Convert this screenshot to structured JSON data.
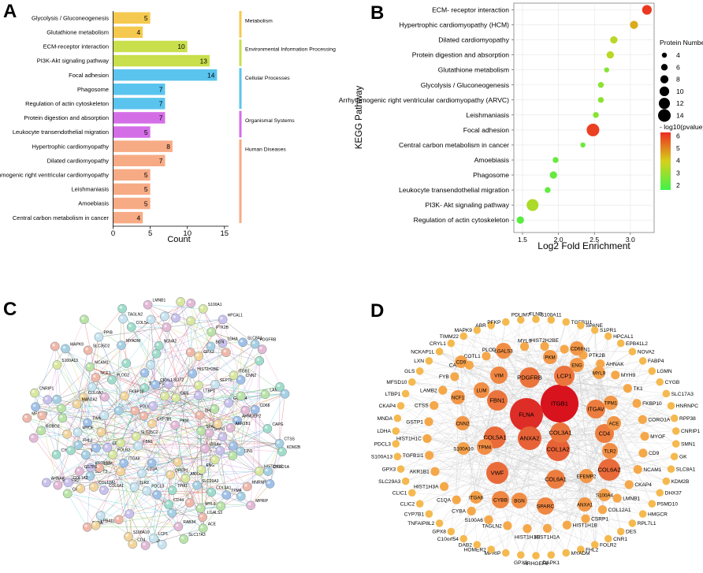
{
  "panels": {
    "a": "A",
    "b": "B",
    "c": "C",
    "d": "D"
  },
  "chart_data": [
    {
      "type": "bar",
      "orientation": "horizontal",
      "title": "",
      "xlabel": "Count",
      "ylabel": "",
      "xlim": [
        0,
        17
      ],
      "xticks": [
        "0",
        "5",
        "10",
        "15"
      ],
      "categories": [
        "Glycolysis / Gluconeogenesis",
        "Glutathione metabolism",
        "ECM-receptor interaction",
        "PI3K-Akt signaling pathway",
        "Focal adhesion",
        "Phagosome",
        "Regulation of actin cytoskeleton",
        "Protein digestion and absorption",
        "Leukocyte transendothelial migration",
        "Hypertrophic cardiomyopathy",
        "Dilated cardiomyopathy",
        "Arrhythmogenic right ventricular cardiomyopathy",
        "Leishmaniasis",
        "Amoebiasis",
        "Central carbon metabolism in cancer"
      ],
      "category_labels": [
        "Glycolysis / Gluconeogenesis",
        "Glutathione metabolism",
        "ECM-receptor interaction",
        "PI3K-Akt signaling pathway",
        "Focal adhesion",
        "Phagosome",
        "Regulation of actin cytoskeleton",
        "Protein digestion and absorption",
        "Leukocyte transendothelial migration",
        "Hypertrophic cardiomyopathy",
        "Dilated cardiomyopathy",
        "rrhythmogenic right ventricular cardiomyopathy",
        "Leishmaniasis",
        "Amoebiasis",
        "Central carbon metabolism in cancer"
      ],
      "values": [
        5,
        4,
        10,
        13,
        14,
        7,
        7,
        7,
        5,
        8,
        7,
        5,
        5,
        5,
        4
      ],
      "groups": [
        {
          "name": "Metabolism",
          "color": "#f5c94f",
          "count": 2
        },
        {
          "name": "Environmental Information Processing",
          "color": "#c9df4c",
          "count": 2
        },
        {
          "name": "Cellular Processes",
          "color": "#5ac4ee",
          "count": 3
        },
        {
          "name": "Organismal Systems",
          "color": "#d46ee6",
          "count": 2
        },
        {
          "name": "Human Diseases",
          "color": "#f7ab85",
          "count": 6
        }
      ]
    },
    {
      "type": "scatter",
      "title": "",
      "xlabel": "Log2 Fold Enrichment",
      "ylabel": "KEGG Pathway",
      "xlim": [
        1.38,
        3.33
      ],
      "xticks": [
        1.5,
        2.0,
        2.5,
        3.0
      ],
      "xtick_labels": [
        "1.5",
        "2.0",
        "2.5",
        "3.0"
      ],
      "categories": [
        "ECM- receptor interaction",
        "Hypertrophic cardiomyopathy (HCM)",
        "Dilated cardiomyopathy",
        "Protein digestion and absorption",
        "Glutathione metabolism",
        "Glycolysis / Gluconeogenesis",
        "Arrhythmogenic right ventricular cardiomyopathy (ARVC)",
        "Leishmaniasis",
        "Focal adhesion",
        "Central carbon metabolism in cancer",
        "Amoebiasis",
        "Phagosome",
        "Leukocyte transendothelial migration",
        "PI3K- Akt signaling pathway",
        "Regulation of actin cytoskeleton"
      ],
      "x": [
        3.23,
        3.05,
        2.77,
        2.72,
        2.67,
        2.59,
        2.59,
        2.52,
        2.48,
        2.34,
        1.96,
        1.93,
        1.85,
        1.64,
        1.47
      ],
      "protein_number": [
        10,
        8,
        7,
        7,
        4,
        5,
        5,
        5,
        14,
        4,
        5,
        7,
        5,
        13,
        7
      ],
      "neg_log10_pvalue": [
        6.1,
        4.5,
        3.5,
        3.5,
        2.7,
        2.8,
        2.8,
        2.7,
        6.0,
        2.3,
        2.2,
        2.2,
        2.1,
        3.3,
        2.0
      ],
      "legend_size": {
        "title": "Protein Number",
        "labels": [
          "4",
          "6",
          "8",
          "10",
          "12",
          "14"
        ],
        "values": [
          4,
          6,
          8,
          10,
          12,
          14
        ]
      },
      "legend_color": {
        "title": "- log10(pvalue)",
        "labels": [
          "6",
          "5",
          "4",
          "3",
          "2"
        ],
        "values": [
          6,
          5,
          4,
          3,
          2
        ],
        "range": [
          1.6,
          6.3
        ],
        "low_color": "#3ff34a",
        "mid_color": "#d6d11b",
        "high_color": "#ed2b22"
      }
    }
  ],
  "network_c": {
    "labels": [
      "PDGFRB",
      "EMILIN1",
      "LTBP1",
      "COL12A1",
      "PLOD2",
      "MPRIP",
      "FOLR2",
      "TIMM22",
      "HNRNPC",
      "TLR2",
      "CTSS",
      "ACE",
      "CD9",
      "COL6A2",
      "COL5A1",
      "ITGAV",
      "SLC35C2",
      "ARMDEP2",
      "SLC35D2",
      "SEPT8",
      "SEPT3",
      "OPP7",
      "KRT8D2",
      "DPEP1",
      "STXBP1",
      "RAB34",
      "S100A1",
      "SLC8A1",
      "MFSD10",
      "PDCL3",
      "SLC29A3",
      "SLC17A3",
      "GOLM4",
      "MAN2A2",
      "KDM2B",
      "HOMER2",
      "HIST1H1C",
      "HIST2H2BE",
      "DHX37",
      "PPIB",
      "MAPK9",
      "ROBO2",
      "SLIT2",
      "CYP7B1",
      "CD44",
      "AKR1B1",
      "ANXA1",
      "CRYL1",
      "PDLIM7",
      "FBN1",
      "VIM",
      "LAMB2",
      "COL1A2",
      "S100A10",
      "TPM1",
      "PKM",
      "ENG",
      "CD68",
      "LUM",
      "MYOF",
      "CORO1A",
      "NCAM1",
      "LDHA",
      "GPX3",
      "CYBB",
      "LMNB1",
      "S100A13",
      "CNN2",
      "NCF1",
      "TAGLN2",
      "FHL2",
      "PTK2B",
      "AHNAK",
      "FKBP10",
      "COL3A1",
      "FLNA",
      "ITGB1",
      "TPM4",
      "LGALS3",
      "LCP1",
      "BGN",
      "SPARC",
      "COL6A1",
      "CD4",
      "CAPG",
      "GSTP1",
      "DES",
      "ITGA8",
      "CYBA",
      "C1QA",
      "MYADM",
      "MYL9",
      "HPCAL1",
      "EPB41L2",
      "NOVA2",
      "SMN1",
      "CNRIP1"
    ]
  },
  "network_d": {
    "hubs": [
      "ITGB1",
      "FLNA",
      "ANXA2",
      "COL1A2",
      "COL3A1",
      "FBN1",
      "PDGFRB",
      "LCP1",
      "COL5A1",
      "CD4",
      "COL6A2",
      "VWF",
      "COL6A1",
      "ITGAV",
      "TPM4",
      "SPARC",
      "VIM",
      "CYBB",
      "BGN",
      "LGALS3",
      "PKM",
      "LUM",
      "NCF1",
      "CD68",
      "ENG",
      "TPM1",
      "ACE",
      "TLR2",
      "EFEMP2",
      "ANXA1",
      "S100A4",
      "ITGA8",
      "S100A10",
      "CD9",
      "MYL9",
      "CNN2"
    ],
    "ring": [
      "FLNB",
      "S100A11",
      "TGFB1I1",
      "SPANE",
      "S1PR1",
      "HPCAL1",
      "EPB41L2",
      "NOVA2",
      "FABP4",
      "LGMN",
      "CYGB",
      "SLC17A3",
      "HNRNPC",
      "RPP38",
      "CNRIP1",
      "SMN1",
      "GK",
      "SLC8A1",
      "KDM2B",
      "DHX37",
      "PSMD10",
      "HMGCR",
      "RPL7L1",
      "DES",
      "CNR1",
      "FOLR2",
      "FHL2",
      "MYADM",
      "DAPK1",
      "ARHGEF6",
      "GPX3",
      "MPRIP",
      "HOMER2",
      "DAB2",
      "C10orf54",
      "GPX8",
      "TNFAIP8L2",
      "CYP7B1",
      "CLIC2",
      "CLIC1",
      "SLC29A3",
      "GPX3",
      "S100A13",
      "PDCL3",
      "LDHA",
      "MNDA",
      "CKAP4",
      "LTBP1",
      "MFSD10",
      "GLS",
      "LXN",
      "NCKAP1L",
      "CRYL1",
      "TIMM22",
      "MAPK9",
      "ABR",
      "PFKP",
      "PDLIM7"
    ],
    "inner": [
      "HIST2H2BE",
      "EMILIN1",
      "PTK2B",
      "AHNAK",
      "MYH9",
      "TK1",
      "FKBP10",
      "CORO1A",
      "MYOF",
      "CD9",
      "NCAM1",
      "CKAP4",
      "LMNB1",
      "COL12A1",
      "CSRP1",
      "HIST1H1B",
      "HIST1H1A",
      "HIST1H1D",
      "TAGLN2",
      "S100A6",
      "CYBA",
      "C1QA",
      "HIST1H3A",
      "AKR1B1",
      "TGFB1I1",
      "HIST1H1C",
      "GSTP1",
      "CTSS",
      "LAMB2",
      "FYB",
      "CAPG",
      "COTL1",
      "PLOD2",
      "MYL9"
    ]
  }
}
